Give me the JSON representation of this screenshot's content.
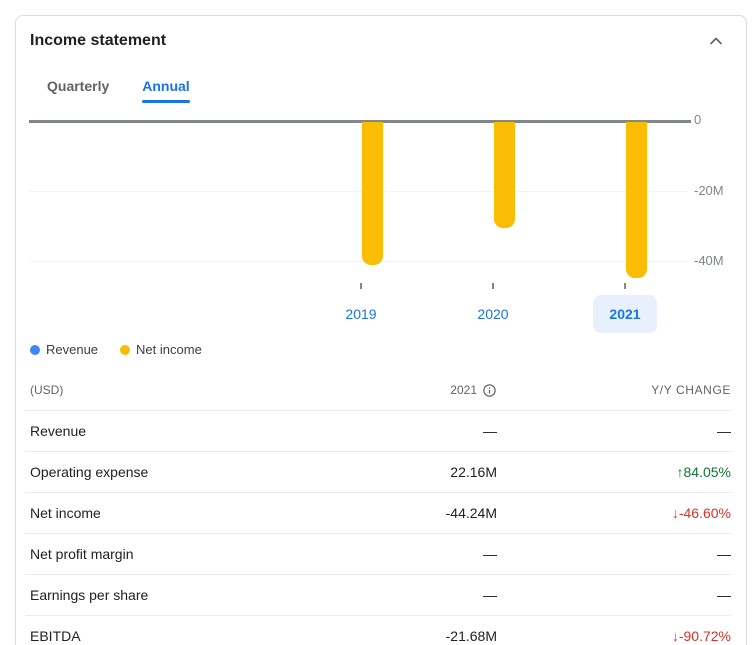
{
  "card": {
    "title": "Income statement",
    "collapse_icon": "chevron-up"
  },
  "tabs": [
    {
      "label": "Quarterly",
      "active": false
    },
    {
      "label": "Annual",
      "active": true
    }
  ],
  "chart_data": {
    "type": "bar",
    "categories": [
      "2019",
      "2020",
      "2021"
    ],
    "series": [
      {
        "name": "Revenue",
        "color": "#4285f4",
        "values": [
          null,
          null,
          null
        ]
      },
      {
        "name": "Net income",
        "color": "#fbbc04",
        "values": [
          -40.6,
          -30.2,
          -44.24
        ]
      }
    ],
    "unit": "millions USD",
    "ytick_labels": [
      "0",
      "-20M",
      "-40M"
    ],
    "ytick_values": [
      0,
      -20,
      -40
    ],
    "ylim": [
      -48,
      0
    ],
    "selected_category": "2021",
    "grid": true,
    "legend_position": "bottom-left"
  },
  "legend": [
    {
      "label": "Revenue",
      "color": "#4285f4"
    },
    {
      "label": "Net income",
      "color": "#fbbc04"
    }
  ],
  "table": {
    "header": {
      "currency": "(USD)",
      "period": "2021",
      "change": "Y/Y CHANGE"
    },
    "rows": [
      {
        "label": "Revenue",
        "value": "—",
        "arrow": "",
        "change": "—",
        "direction": "none"
      },
      {
        "label": "Operating expense",
        "value": "22.16M",
        "arrow": "↑",
        "change": "84.05%",
        "direction": "up"
      },
      {
        "label": "Net income",
        "value": "-44.24M",
        "arrow": "↓",
        "change": "-46.60%",
        "direction": "down"
      },
      {
        "label": "Net profit margin",
        "value": "—",
        "arrow": "",
        "change": "—",
        "direction": "none"
      },
      {
        "label": "Earnings per share",
        "value": "—",
        "arrow": "",
        "change": "—",
        "direction": "none"
      },
      {
        "label": "EBITDA",
        "value": "-21.68M",
        "arrow": "↓",
        "change": "-90.72%",
        "direction": "down"
      }
    ],
    "colors": {
      "up": "#137333",
      "down": "#d93025",
      "accent": "#1a73e8",
      "highlight_bg": "#e8f0fe"
    }
  }
}
